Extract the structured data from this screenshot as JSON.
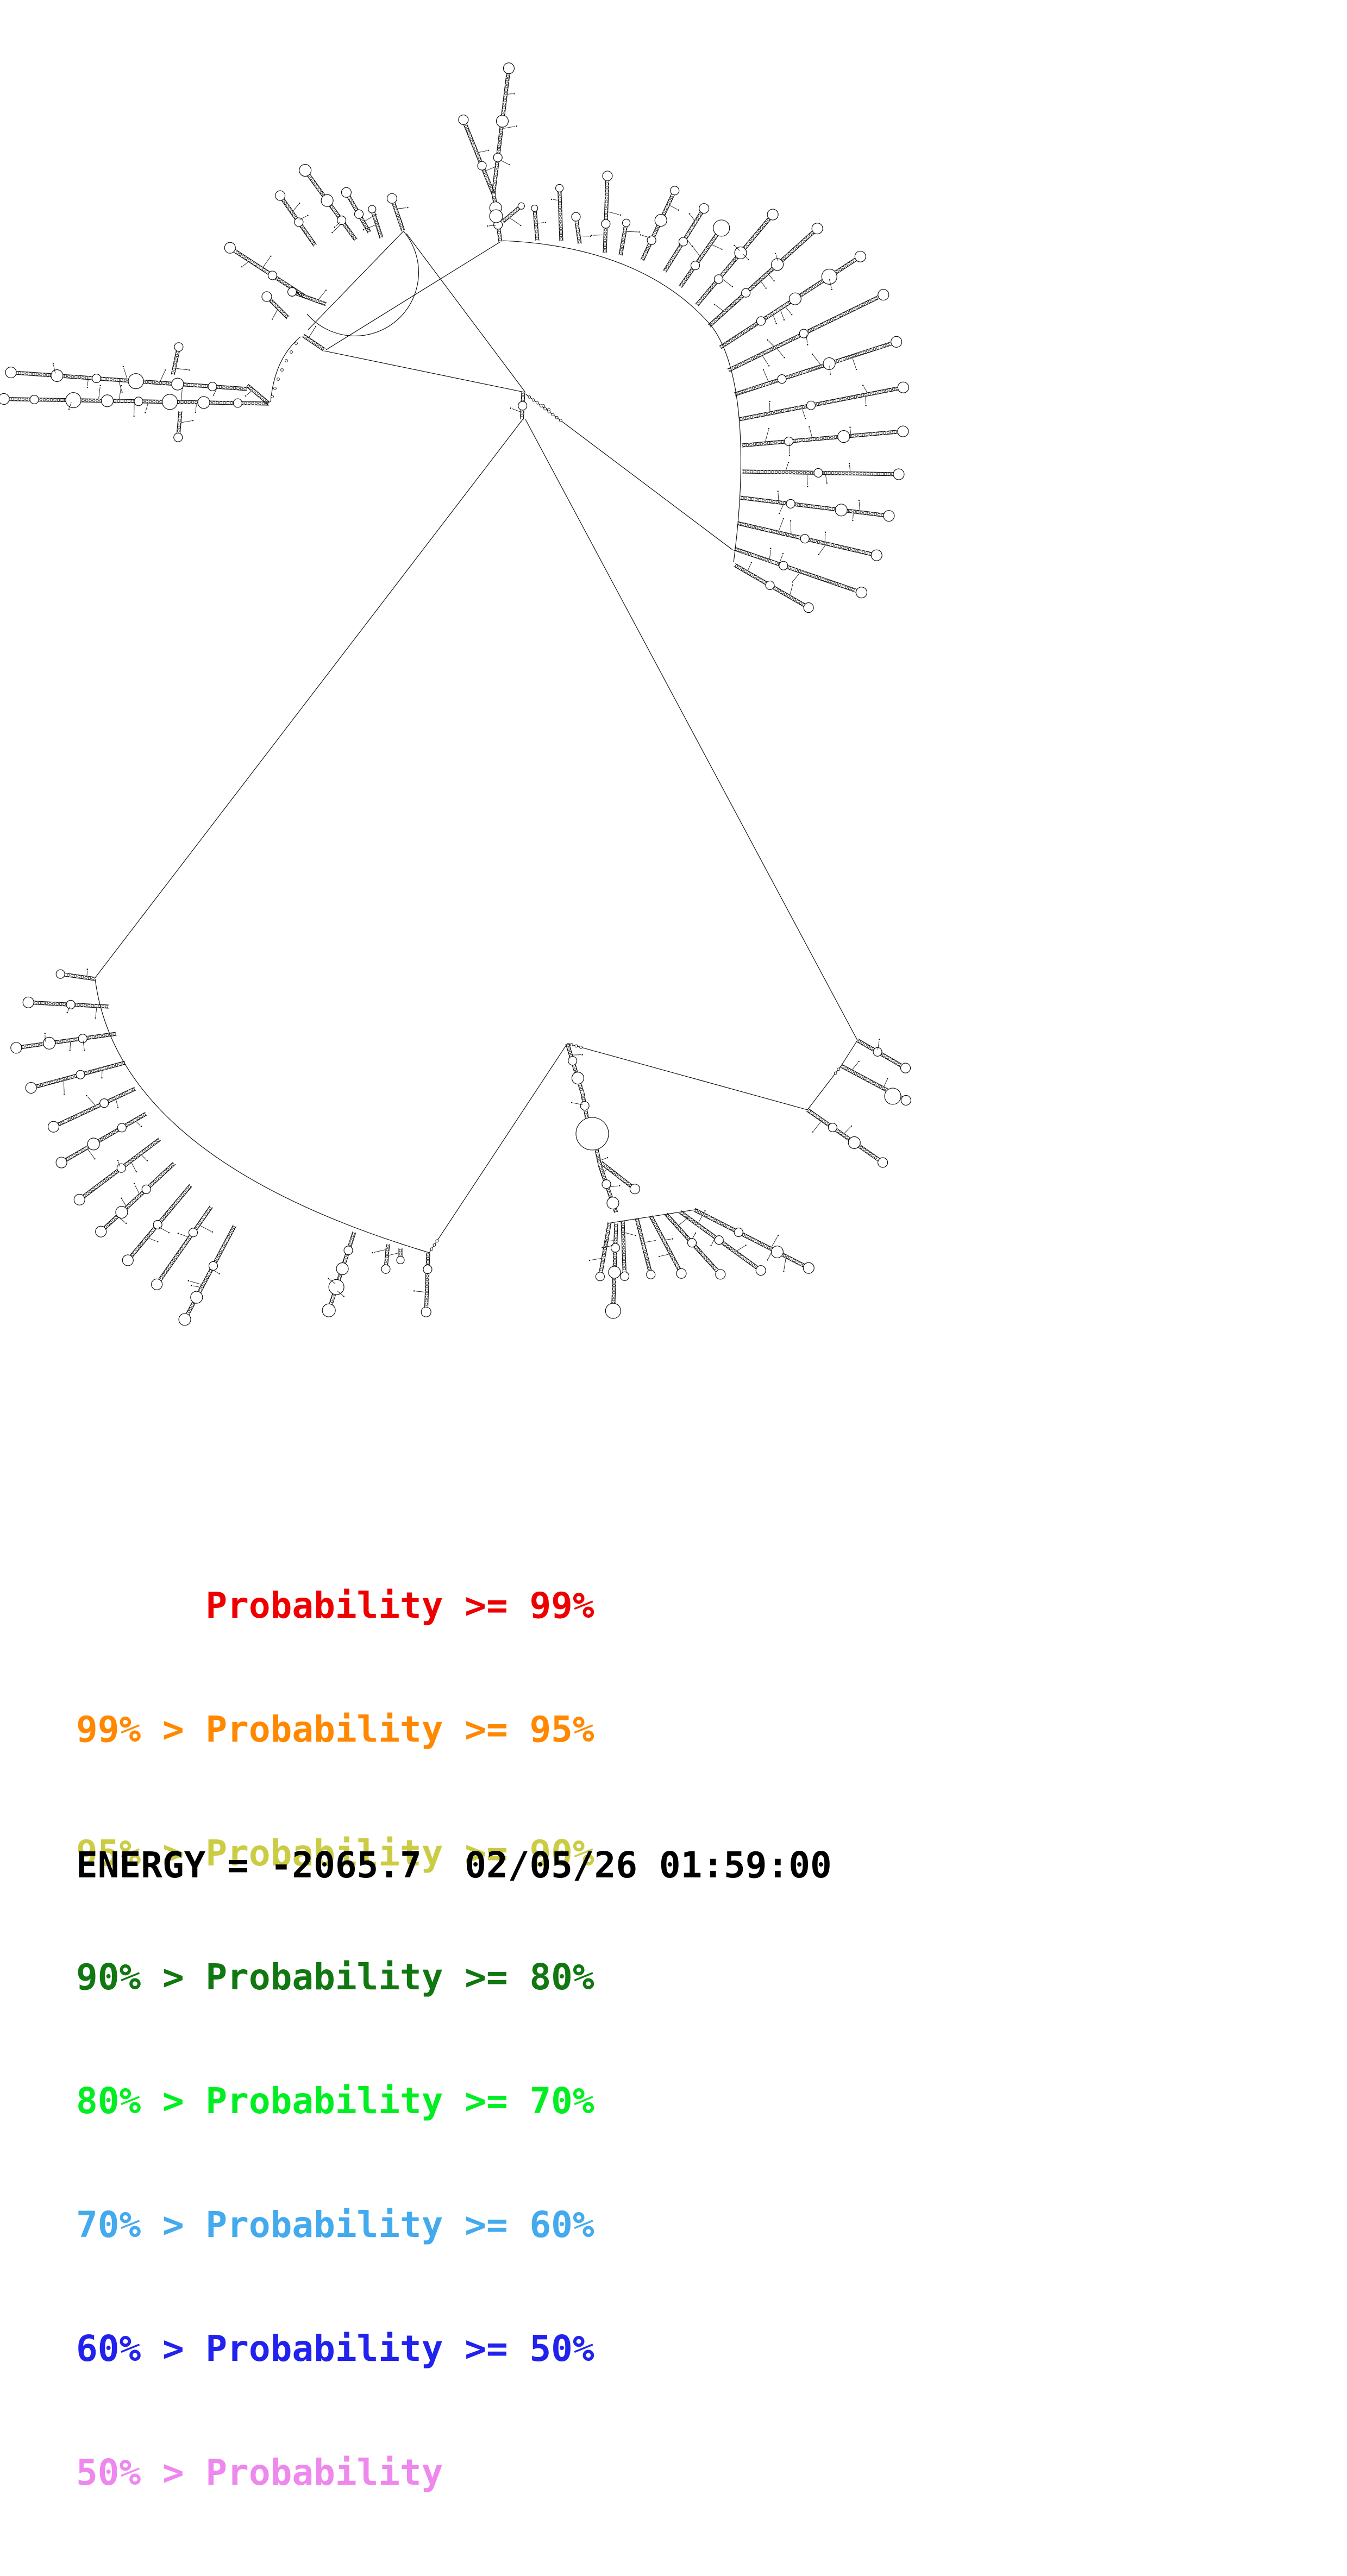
{
  "legend": {
    "lines": [
      {
        "text": "      Probability >= 99%",
        "color": "#ee0000"
      },
      {
        "text": "99% > Probability >= 95%",
        "color": "#ff8800"
      },
      {
        "text": "95% > Probability >= 90%",
        "color": "#cccc44"
      },
      {
        "text": "90% > Probability >= 80%",
        "color": "#117711"
      },
      {
        "text": "80% > Probability >= 70%",
        "color": "#00ee22"
      },
      {
        "text": "70% > Probability >= 60%",
        "color": "#44aaee"
      },
      {
        "text": "60% > Probability >= 50%",
        "color": "#2222ee"
      },
      {
        "text": "50% > Probability",
        "color": "#ee88ee"
      }
    ]
  },
  "footer": {
    "energy_text": "ENERGY = -2065.7  02/05/26 01:59:00"
  },
  "plot": {
    "ink_color": "#000000",
    "background": "#ffffff",
    "description": "RNA secondary structure probability plot (mfold-style)"
  },
  "structure": {
    "stem_format": "[baseX, baseY, angleDeg, length, tipLoopRadius, bulgePositions]",
    "lines": [
      [
        965,
        722,
        597,
        646,
        0
      ],
      [
        600,
        644,
        921,
        445,
        0
      ],
      [
        742,
        426,
        567,
        607,
        0
      ],
      [
        748,
        430,
        966,
        721,
        0
      ],
      [
        962,
        772,
        175,
        1800,
        0
      ],
      [
        967,
        772,
        1578,
        1915,
        0
      ],
      [
        790,
        2306,
        1044,
        1921,
        3
      ],
      [
        1044,
        1921,
        1486,
        2043,
        3
      ],
      [
        1578,
        1915,
        1548,
        1962,
        0
      ],
      [
        1548,
        1962,
        1486,
        2043,
        2
      ],
      [
        968,
        726,
        1348,
        1012,
        9
      ],
      [
        1118,
        2252,
        1285,
        2226,
        0
      ]
    ],
    "arcs": [
      "M925,443 C1090,450 1220,500 1305,595 C1368,668 1375,850 1350,1035",
      "M175,1802 Q218,2134 790,2306",
      "M742,425 A116,116 0 0 1 565,578",
      "M553,620 Q505,660 498,740"
    ],
    "stems": [
      [
        921,
        445,
        262,
        90,
        0,
        [
          0.35,
          0.7
        ]
      ],
      [
        908,
        357,
        248,
        140,
        9,
        [
          0.4
        ]
      ],
      [
        908,
        357,
        277,
        225,
        10,
        [
          0.3,
          0.6
        ]
      ],
      [
        925,
        408,
        320,
        40,
        6,
        []
      ],
      [
        989,
        443,
        265,
        55,
        6,
        []
      ],
      [
        1033,
        444,
        268,
        92,
        7,
        []
      ],
      [
        1067,
        449,
        262,
        44,
        8,
        []
      ],
      [
        1113,
        466,
        272,
        135,
        9,
        [
          0.4
        ]
      ],
      [
        1142,
        470,
        280,
        55,
        7,
        []
      ],
      [
        1182,
        479,
        295,
        135,
        8,
        [
          0.3,
          0.6
        ]
      ],
      [
        1223,
        500,
        302,
        130,
        9,
        [
          0.5
        ]
      ],
      [
        1252,
        528,
        305,
        120,
        15,
        [
          0.4
        ]
      ],
      [
        1282,
        562,
        310,
        210,
        10,
        [
          0.3,
          0.6
        ]
      ],
      [
        1305,
        600,
        318,
        260,
        10,
        [
          0.35,
          0.65
        ]
      ],
      [
        1325,
        640,
        327,
        300,
        10,
        [
          0.3,
          0.55,
          0.8
        ]
      ],
      [
        1340,
        682,
        334,
        310,
        10,
        [
          0.5
        ]
      ],
      [
        1352,
        726,
        342,
        305,
        10,
        [
          0.3,
          0.6
        ]
      ],
      [
        1360,
        772,
        349,
        300,
        10,
        [
          0.45
        ]
      ],
      [
        1365,
        820,
        355,
        290,
        10,
        [
          0.3,
          0.65
        ]
      ],
      [
        1366,
        868,
        1,
        280,
        10,
        [
          0.5
        ]
      ],
      [
        1362,
        916,
        7,
        268,
        10,
        [
          0.35,
          0.7
        ]
      ],
      [
        1357,
        963,
        13,
        255,
        10,
        [
          0.5
        ]
      ],
      [
        1351,
        1010,
        19,
        240,
        10,
        [
          0.4
        ]
      ],
      [
        1352,
        1040,
        30,
        150,
        9,
        [
          0.5
        ]
      ],
      [
        655,
        442,
        234,
        150,
        11,
        [
          0.3,
          0.6
        ]
      ],
      [
        580,
        452,
        235,
        105,
        9,
        [
          0.5
        ]
      ],
      [
        560,
        545,
        213,
        155,
        10,
        [
          0.45
        ]
      ],
      [
        680,
        428,
        240,
        78,
        9,
        [
          0.5
        ]
      ],
      [
        702,
        438,
        252,
        50,
        7,
        []
      ],
      [
        742,
        425,
        251,
        56,
        9,
        []
      ],
      [
        600,
        560,
        200,
        60,
        8,
        []
      ],
      [
        530,
        585,
        225,
        48,
        9,
        []
      ],
      [
        597,
        644,
        214,
        48,
        0,
        []
      ],
      [
        495,
        743,
        181,
        480,
        10,
        [
          0.12,
          0.25,
          0.38,
          0.5,
          0.62,
          0.75,
          0.9
        ]
      ],
      [
        455,
        716,
        184,
        428,
        10,
        [
          0.15,
          0.3,
          0.48,
          0.65,
          0.82
        ]
      ],
      [
        495,
        743,
        220,
        52,
        0,
        []
      ],
      [
        318,
        690,
        282,
        46,
        8,
        []
      ],
      [
        332,
        757,
        95,
        42,
        8,
        []
      ],
      [
        963,
        722,
        93,
        50,
        0,
        [
          0.5
        ]
      ],
      [
        175,
        1802,
        188,
        58,
        8,
        []
      ],
      [
        200,
        1853,
        183,
        140,
        10,
        [
          0.5
        ]
      ],
      [
        214,
        1903,
        172,
        178,
        10,
        [
          0.35,
          0.7
        ]
      ],
      [
        231,
        1956,
        165,
        172,
        10,
        [
          0.5
        ]
      ],
      [
        249,
        2004,
        155,
        158,
        10,
        [
          0.4
        ]
      ],
      [
        269,
        2050,
        150,
        172,
        10,
        [
          0.3,
          0.65
        ]
      ],
      [
        294,
        2097,
        143,
        177,
        10,
        [
          0.5
        ]
      ],
      [
        321,
        2141,
        137,
        177,
        10,
        [
          0.4,
          0.75
        ]
      ],
      [
        351,
        2182,
        130,
        172,
        10,
        [
          0.55
        ]
      ],
      [
        389,
        2221,
        125,
        167,
        10,
        [
          0.35
        ]
      ],
      [
        432,
        2256,
        118,
        187,
        11,
        [
          0.45,
          0.8
        ]
      ],
      [
        652,
        2268,
        108,
        142,
        12,
        [
          0.25,
          0.5,
          0.75
        ]
      ],
      [
        714,
        2290,
        95,
        40,
        8,
        []
      ],
      [
        737,
        2298,
        90,
        16,
        7,
        []
      ],
      [
        788,
        2306,
        92,
        102,
        9,
        [
          0.3
        ]
      ],
      [
        1044,
        1921,
        73,
        95,
        0,
        [
          0.35,
          0.7
        ]
      ],
      [
        1072,
        2012,
        80,
        48,
        0,
        [
          0.5
        ]
      ],
      [
        1098,
        2116,
        78,
        30,
        0,
        []
      ],
      [
        1106,
        2140,
        38,
        72,
        9,
        []
      ],
      [
        1104,
        2145,
        71,
        92,
        0,
        [
          0.4,
          0.8
        ]
      ],
      [
        1122,
        2250,
        100,
        95,
        8,
        []
      ],
      [
        1146,
        2247,
        88,
        96,
        8,
        []
      ],
      [
        1172,
        2243,
        76,
        100,
        8,
        []
      ],
      [
        1198,
        2239,
        62,
        112,
        9,
        []
      ],
      [
        1226,
        2235,
        48,
        142,
        9,
        [
          0.5
        ]
      ],
      [
        1252,
        2231,
        36,
        176,
        9,
        [
          0.5
        ]
      ],
      [
        1278,
        2227,
        27,
        228,
        10,
        [
          0.4,
          0.75
        ]
      ],
      [
        1134,
        2252,
        92,
        150,
        14,
        [
          0.3,
          0.6
        ]
      ],
      [
        1578,
        1915,
        30,
        95,
        9,
        [
          0.45
        ]
      ],
      [
        1548,
        1962,
        28,
        128,
        9,
        []
      ],
      [
        1486,
        2043,
        35,
        162,
        9,
        [
          0.35,
          0.65
        ]
      ]
    ],
    "circles": [
      [
        1090,
        2087,
        30
      ],
      [
        1643,
        2018,
        15
      ],
      [
        913,
        398,
        12
      ]
    ],
    "dots": [
      [
        545,
        632
      ],
      [
        536,
        648
      ],
      [
        527,
        664
      ],
      [
        519,
        681
      ],
      [
        512,
        698
      ],
      [
        506,
        715
      ],
      [
        501,
        730
      ],
      [
        1000,
        747
      ],
      [
        1010,
        754
      ]
    ]
  }
}
